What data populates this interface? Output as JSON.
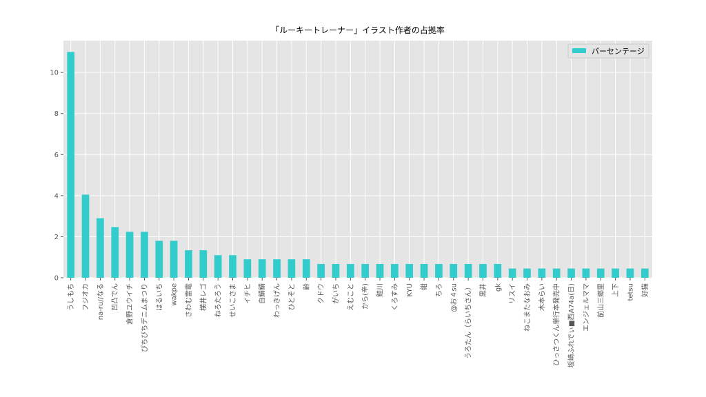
{
  "chart_data": {
    "type": "bar",
    "title": "「ルーキートレーナー」イラスト作者の占拠率",
    "xlabel": "",
    "ylabel": "",
    "ylim": [
      0,
      11.55
    ],
    "yticks": [
      0,
      2,
      4,
      6,
      8,
      10
    ],
    "grid": true,
    "legend_position": "top-right",
    "bar_color": "#33CCCC",
    "plot_background": "#E5E5E5",
    "categories": [
      "うしもち",
      "フジオカ",
      "na-ru//なる",
      "凹凸でん",
      "倉野ユウイチ",
      "ぴちぴちデニムまつり",
      "はるいち",
      "wakpe",
      "さわむ雷電",
      "横井レゴ",
      "ねろたろう",
      "せいこさま",
      "イチヒ",
      "白鯖鯖",
      "わっきげん",
      "ひとそと",
      "齢",
      "クドウ",
      "がいち",
      "えむこと",
      "から(辛)",
      "鮭川",
      "くろすみ",
      "KYU",
      "紺",
      "ちろ",
      "@お４su",
      "うろたん（らいちさん）",
      "黒井",
      "gk",
      "リスイ",
      "ねこまたなおみ",
      "木本らい",
      "ひっさつくん単行本発売中",
      "坂崎ふれでぃ■西A74a(日)",
      "エンジェルママ",
      "前山三郷里",
      "上下",
      "tetsu",
      "好猫"
    ],
    "series": [
      {
        "name": "パーセンテージ",
        "values": [
          11.0,
          4.05,
          2.9,
          2.47,
          2.24,
          2.24,
          1.8,
          1.8,
          1.34,
          1.34,
          1.1,
          1.1,
          0.9,
          0.9,
          0.9,
          0.9,
          0.9,
          0.67,
          0.67,
          0.67,
          0.67,
          0.67,
          0.67,
          0.67,
          0.67,
          0.67,
          0.67,
          0.67,
          0.67,
          0.67,
          0.45,
          0.45,
          0.45,
          0.45,
          0.45,
          0.45,
          0.45,
          0.45,
          0.45,
          0.45
        ]
      }
    ]
  }
}
